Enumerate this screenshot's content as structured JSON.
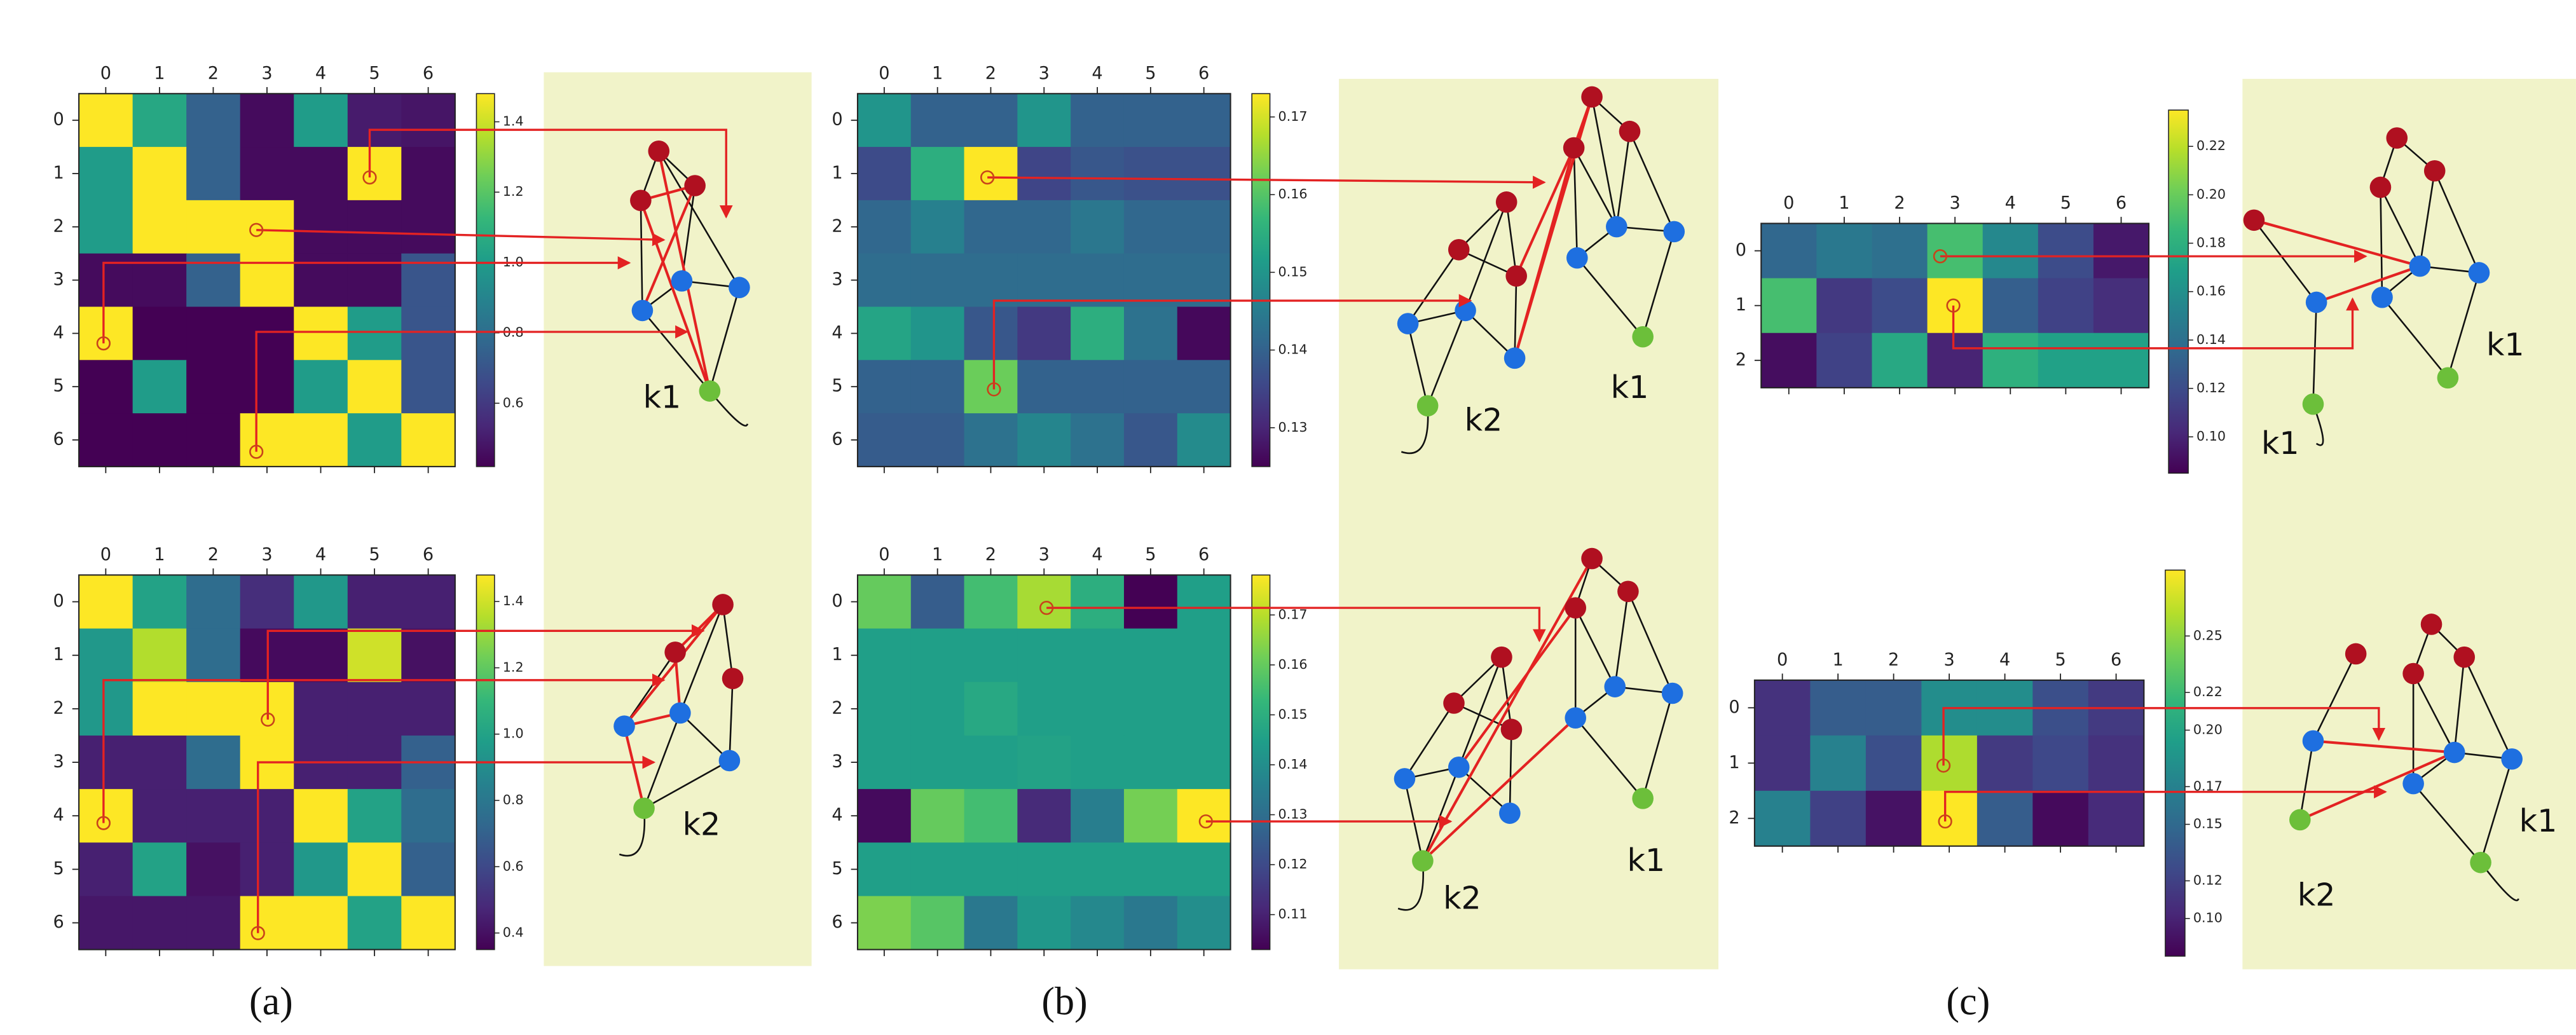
{
  "chart_data": [
    {
      "type": "heatmap",
      "colormap": "viridis",
      "x_categories": [
        "0",
        "1",
        "2",
        "3",
        "4",
        "5",
        "6"
      ],
      "y_categories": [
        "0",
        "1",
        "2",
        "3",
        "4",
        "5",
        "6"
      ],
      "values": [
        [
          1.48,
          1.05,
          0.75,
          0.45,
          1.0,
          0.5,
          0.48
        ],
        [
          1.0,
          1.48,
          0.75,
          0.45,
          0.45,
          1.48,
          0.45
        ],
        [
          1.0,
          1.48,
          1.48,
          1.48,
          0.45,
          0.45,
          0.45
        ],
        [
          0.45,
          0.45,
          0.75,
          1.48,
          0.45,
          0.45,
          0.7
        ],
        [
          1.48,
          0.42,
          0.42,
          0.42,
          1.48,
          1.0,
          0.7
        ],
        [
          0.42,
          1.0,
          0.42,
          0.42,
          1.0,
          1.48,
          0.7
        ],
        [
          0.42,
          0.42,
          0.42,
          1.48,
          1.48,
          1.0,
          1.48
        ]
      ],
      "zlim": [
        0.42,
        1.48
      ],
      "zticks": [
        0.6,
        0.8,
        {
          "value": 1.0,
          "label": "1.0"
        },
        1.2,
        1.4
      ]
    },
    {
      "type": "heatmap",
      "colormap": "viridis",
      "x_categories": [
        "0",
        "1",
        "2",
        "3",
        "4",
        "5",
        "6"
      ],
      "y_categories": [
        "0",
        "1",
        "2",
        "3",
        "4",
        "5",
        "6"
      ],
      "values": [
        [
          1.48,
          1.0,
          0.75,
          0.5,
          0.95,
          0.45,
          0.45
        ],
        [
          0.95,
          1.35,
          0.75,
          0.38,
          0.38,
          1.4,
          0.4
        ],
        [
          0.95,
          1.48,
          1.48,
          1.48,
          0.45,
          0.45,
          0.45
        ],
        [
          0.45,
          0.45,
          0.75,
          1.48,
          0.45,
          0.45,
          0.7
        ],
        [
          1.48,
          0.45,
          0.45,
          0.45,
          1.48,
          1.0,
          0.75
        ],
        [
          0.45,
          1.0,
          0.4,
          0.45,
          0.95,
          1.48,
          0.7
        ],
        [
          0.42,
          0.42,
          0.42,
          1.48,
          1.48,
          1.0,
          1.48
        ]
      ],
      "zlim": [
        0.35,
        1.48
      ],
      "zticks": [
        0.4,
        0.6,
        0.8,
        {
          "value": 1.0,
          "label": "1.0"
        },
        1.2,
        1.4
      ]
    },
    {
      "type": "heatmap",
      "colormap": "viridis",
      "x_categories": [
        "0",
        "1",
        "2",
        "3",
        "4",
        "5",
        "6"
      ],
      "y_categories": [
        "0",
        "1",
        "2",
        "3",
        "4",
        "5",
        "6"
      ],
      "values": [
        [
          0.15,
          0.14,
          0.14,
          0.15,
          0.14,
          0.14,
          0.14
        ],
        [
          0.136,
          0.155,
          0.173,
          0.135,
          0.138,
          0.137,
          0.137
        ],
        [
          0.141,
          0.146,
          0.141,
          0.141,
          0.144,
          0.141,
          0.141
        ],
        [
          0.142,
          0.142,
          0.142,
          0.142,
          0.142,
          0.142,
          0.142
        ],
        [
          0.153,
          0.15,
          0.138,
          0.133,
          0.155,
          0.143,
          0.126
        ],
        [
          0.14,
          0.14,
          0.162,
          0.14,
          0.14,
          0.14,
          0.14
        ],
        [
          0.139,
          0.139,
          0.143,
          0.147,
          0.143,
          0.138,
          0.148
        ]
      ],
      "zlim": [
        0.125,
        0.173
      ],
      "zticks": [
        0.13,
        0.14,
        0.15,
        0.16,
        0.17
      ]
    },
    {
      "type": "heatmap",
      "colormap": "viridis",
      "x_categories": [
        "0",
        "1",
        "2",
        "3",
        "4",
        "5",
        "6"
      ],
      "y_categories": [
        "0",
        "1",
        "2",
        "3",
        "4",
        "5",
        "6"
      ],
      "values": [
        [
          0.16,
          0.125,
          0.155,
          0.168,
          0.15,
          0.103,
          0.145
        ],
        [
          0.145,
          0.145,
          0.145,
          0.145,
          0.145,
          0.145,
          0.145
        ],
        [
          0.145,
          0.145,
          0.148,
          0.145,
          0.145,
          0.145,
          0.145
        ],
        [
          0.145,
          0.145,
          0.145,
          0.146,
          0.145,
          0.145,
          0.145
        ],
        [
          0.105,
          0.16,
          0.155,
          0.112,
          0.135,
          0.162,
          0.178
        ],
        [
          0.145,
          0.145,
          0.145,
          0.145,
          0.145,
          0.145,
          0.145
        ],
        [
          0.163,
          0.158,
          0.133,
          0.143,
          0.138,
          0.133,
          0.14
        ]
      ],
      "zlim": [
        0.103,
        0.178
      ],
      "zticks": [
        0.11,
        0.12,
        0.13,
        0.14,
        0.15,
        0.16,
        0.17
      ]
    },
    {
      "type": "heatmap",
      "colormap": "viridis",
      "x_categories": [
        "0",
        "1",
        "2",
        "3",
        "4",
        "5",
        "6"
      ],
      "y_categories": [
        "0",
        "1",
        "2"
      ],
      "values": [
        [
          0.135,
          0.145,
          0.14,
          0.19,
          0.155,
          0.12,
          0.095
        ],
        [
          0.19,
          0.11,
          0.12,
          0.235,
          0.13,
          0.115,
          0.105
        ],
        [
          0.09,
          0.115,
          0.175,
          0.1,
          0.18,
          0.17,
          0.17
        ]
      ],
      "zlim": [
        0.085,
        0.235
      ],
      "zticks": [
        {
          "value": 0.1,
          "label": "0.10"
        },
        0.12,
        0.14,
        0.16,
        0.18,
        {
          "value": 0.2,
          "label": "0.20"
        },
        0.22
      ]
    },
    {
      "type": "heatmap",
      "colormap": "viridis",
      "x_categories": [
        "0",
        "1",
        "2",
        "3",
        "4",
        "5",
        "6"
      ],
      "y_categories": [
        "0",
        "1",
        "2"
      ],
      "values": [
        [
          0.11,
          0.14,
          0.14,
          0.18,
          0.18,
          0.13,
          0.115
        ],
        [
          0.11,
          0.17,
          0.13,
          0.26,
          0.115,
          0.125,
          0.11
        ],
        [
          0.17,
          0.12,
          0.09,
          0.285,
          0.14,
          0.085,
          0.105
        ]
      ],
      "zlim": [
        0.08,
        0.285
      ],
      "zticks": [
        {
          "value": 0.1,
          "label": "0.10"
        },
        0.12,
        0.15,
        0.17,
        {
          "value": 0.2,
          "label": "0.20"
        },
        0.22,
        0.25
      ]
    }
  ],
  "graph_labels": [
    [
      "k1"
    ],
    [
      "k2"
    ],
    [
      "k2",
      "k1"
    ],
    [
      "k2",
      "k1"
    ],
    [
      "k1",
      "k1"
    ],
    [
      "k1",
      "k2"
    ]
  ],
  "panel_labels": [
    "(a)",
    "(b)",
    "(c)"
  ]
}
